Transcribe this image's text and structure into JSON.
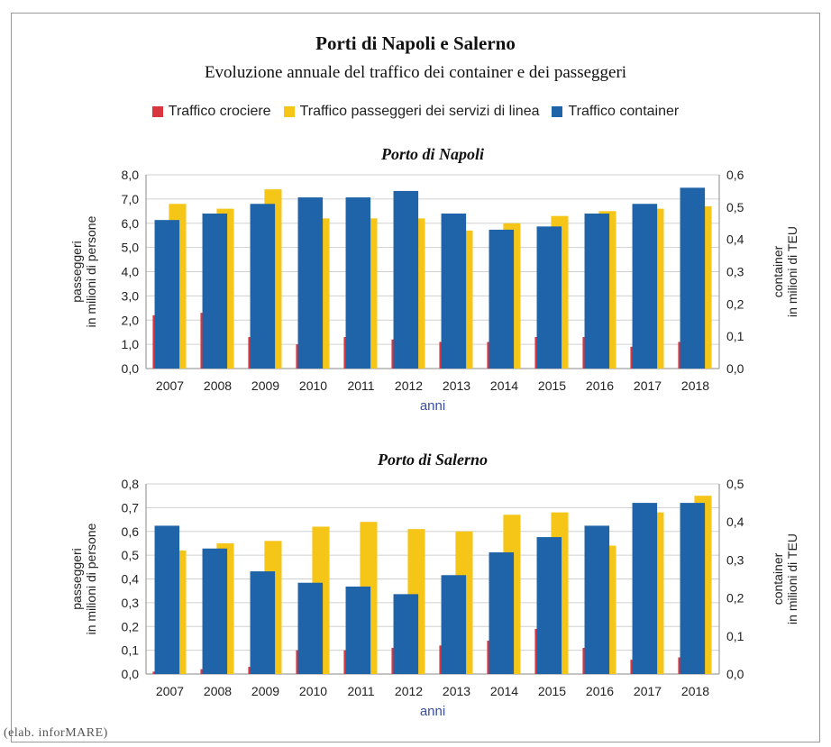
{
  "title": "Porti di Napoli e Salerno",
  "subtitle": "Evoluzione annuale del traffico dei container e dei passeggeri",
  "legend": [
    {
      "label": "Traffico crociere",
      "color": "#d9363e"
    },
    {
      "label": "Traffico passeggeri dei servizi di linea",
      "color": "#f5c518"
    },
    {
      "label": "Traffico container",
      "color": "#1f63a8"
    }
  ],
  "source": "(elab. inforMARE)",
  "chart_data": [
    {
      "type": "bar",
      "title": "Porto di Napoli",
      "categories": [
        "2007",
        "2008",
        "2009",
        "2010",
        "2011",
        "2012",
        "2013",
        "2014",
        "2015",
        "2016",
        "2017",
        "2018"
      ],
      "xlabel": "anni",
      "ylabel_left": [
        "passeggeri",
        "in milioni di persone"
      ],
      "ylabel_right": [
        "container",
        "in milioni di TEU"
      ],
      "ylim_left": [
        0,
        8
      ],
      "ylim_right": [
        0,
        0.6
      ],
      "yticks_left": [
        "0,0",
        "1,0",
        "2,0",
        "3,0",
        "4,0",
        "5,0",
        "6,0",
        "7,0",
        "8,0"
      ],
      "yticks_right": [
        "0,0",
        "0,1",
        "0,2",
        "0,3",
        "0,4",
        "0,5",
        "0,6"
      ],
      "series": [
        {
          "name": "Traffico crociere",
          "axis": "left",
          "values": [
            2.2,
            2.3,
            1.3,
            1.0,
            1.3,
            1.2,
            1.1,
            1.1,
            1.3,
            1.3,
            0.9,
            1.1
          ]
        },
        {
          "name": "Traffico passeggeri dei servizi di linea",
          "axis": "left",
          "values": [
            6.8,
            6.6,
            7.4,
            6.2,
            6.2,
            6.2,
            5.7,
            6.0,
            6.3,
            6.5,
            6.6,
            6.7
          ]
        },
        {
          "name": "Traffico container",
          "axis": "right",
          "values": [
            0.46,
            0.48,
            0.51,
            0.53,
            0.53,
            0.55,
            0.48,
            0.43,
            0.44,
            0.48,
            0.51,
            0.56
          ]
        }
      ]
    },
    {
      "type": "bar",
      "title": "Porto di Salerno",
      "categories": [
        "2007",
        "2008",
        "2009",
        "2010",
        "2011",
        "2012",
        "2013",
        "2014",
        "2015",
        "2016",
        "2017",
        "2018"
      ],
      "xlabel": "anni",
      "ylabel_left": [
        "passeggeri",
        "in milioni di persone"
      ],
      "ylabel_right": [
        "container",
        "in milioni di TEU"
      ],
      "ylim_left": [
        0,
        0.8
      ],
      "ylim_right": [
        0,
        0.5
      ],
      "yticks_left": [
        "0,0",
        "0,1",
        "0,2",
        "0,3",
        "0,4",
        "0,5",
        "0,6",
        "0,7",
        "0,8"
      ],
      "yticks_right": [
        "0,0",
        "0,1",
        "0,2",
        "0,3",
        "0,4",
        "0,5"
      ],
      "series": [
        {
          "name": "Traffico crociere",
          "axis": "left",
          "values": [
            0.01,
            0.02,
            0.03,
            0.1,
            0.1,
            0.11,
            0.12,
            0.14,
            0.19,
            0.11,
            0.06,
            0.07
          ]
        },
        {
          "name": "Traffico passeggeri dei servizi di linea",
          "axis": "left",
          "values": [
            0.52,
            0.55,
            0.56,
            0.62,
            0.64,
            0.61,
            0.6,
            0.67,
            0.68,
            0.54,
            0.68,
            0.75
          ]
        },
        {
          "name": "Traffico container",
          "axis": "right",
          "values": [
            0.39,
            0.33,
            0.27,
            0.24,
            0.23,
            0.21,
            0.26,
            0.32,
            0.36,
            0.39,
            0.45,
            0.45
          ]
        }
      ]
    }
  ]
}
